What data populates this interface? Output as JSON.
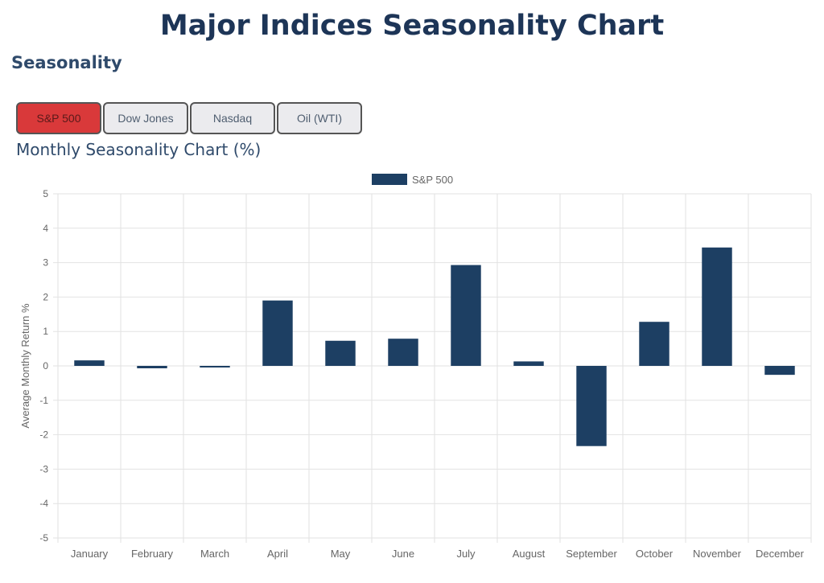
{
  "page": {
    "title": "Major Indices Seasonality Chart",
    "section": "Seasonality",
    "chart_heading": "Monthly Seasonality Chart (%)"
  },
  "tabs": [
    {
      "label": "S&P 500",
      "active": true
    },
    {
      "label": "Dow Jones",
      "active": false
    },
    {
      "label": "Nasdaq",
      "active": false
    },
    {
      "label": "Oil (WTI)",
      "active": false
    }
  ],
  "colors": {
    "bar": "#1d3f63",
    "active_tab": "#d9393a",
    "grid": "#e2e2e2",
    "axis_text": "#666666"
  },
  "chart_data": {
    "type": "bar",
    "categories": [
      "January",
      "February",
      "March",
      "April",
      "May",
      "June",
      "July",
      "August",
      "September",
      "October",
      "November",
      "December"
    ],
    "series": [
      {
        "name": "S&P 500",
        "values": [
          0.16,
          -0.07,
          -0.03,
          1.9,
          0.73,
          0.79,
          2.93,
          0.13,
          -2.33,
          1.28,
          3.44,
          -0.26
        ]
      }
    ],
    "ylabel": "Average Monthly Return %",
    "xlabel": "",
    "ylim": [
      -5,
      5
    ],
    "yticks": [
      5,
      4,
      3,
      2,
      1,
      0,
      -1,
      -2,
      -3,
      -4,
      -5
    ],
    "grid": true,
    "legend": "top-center"
  }
}
